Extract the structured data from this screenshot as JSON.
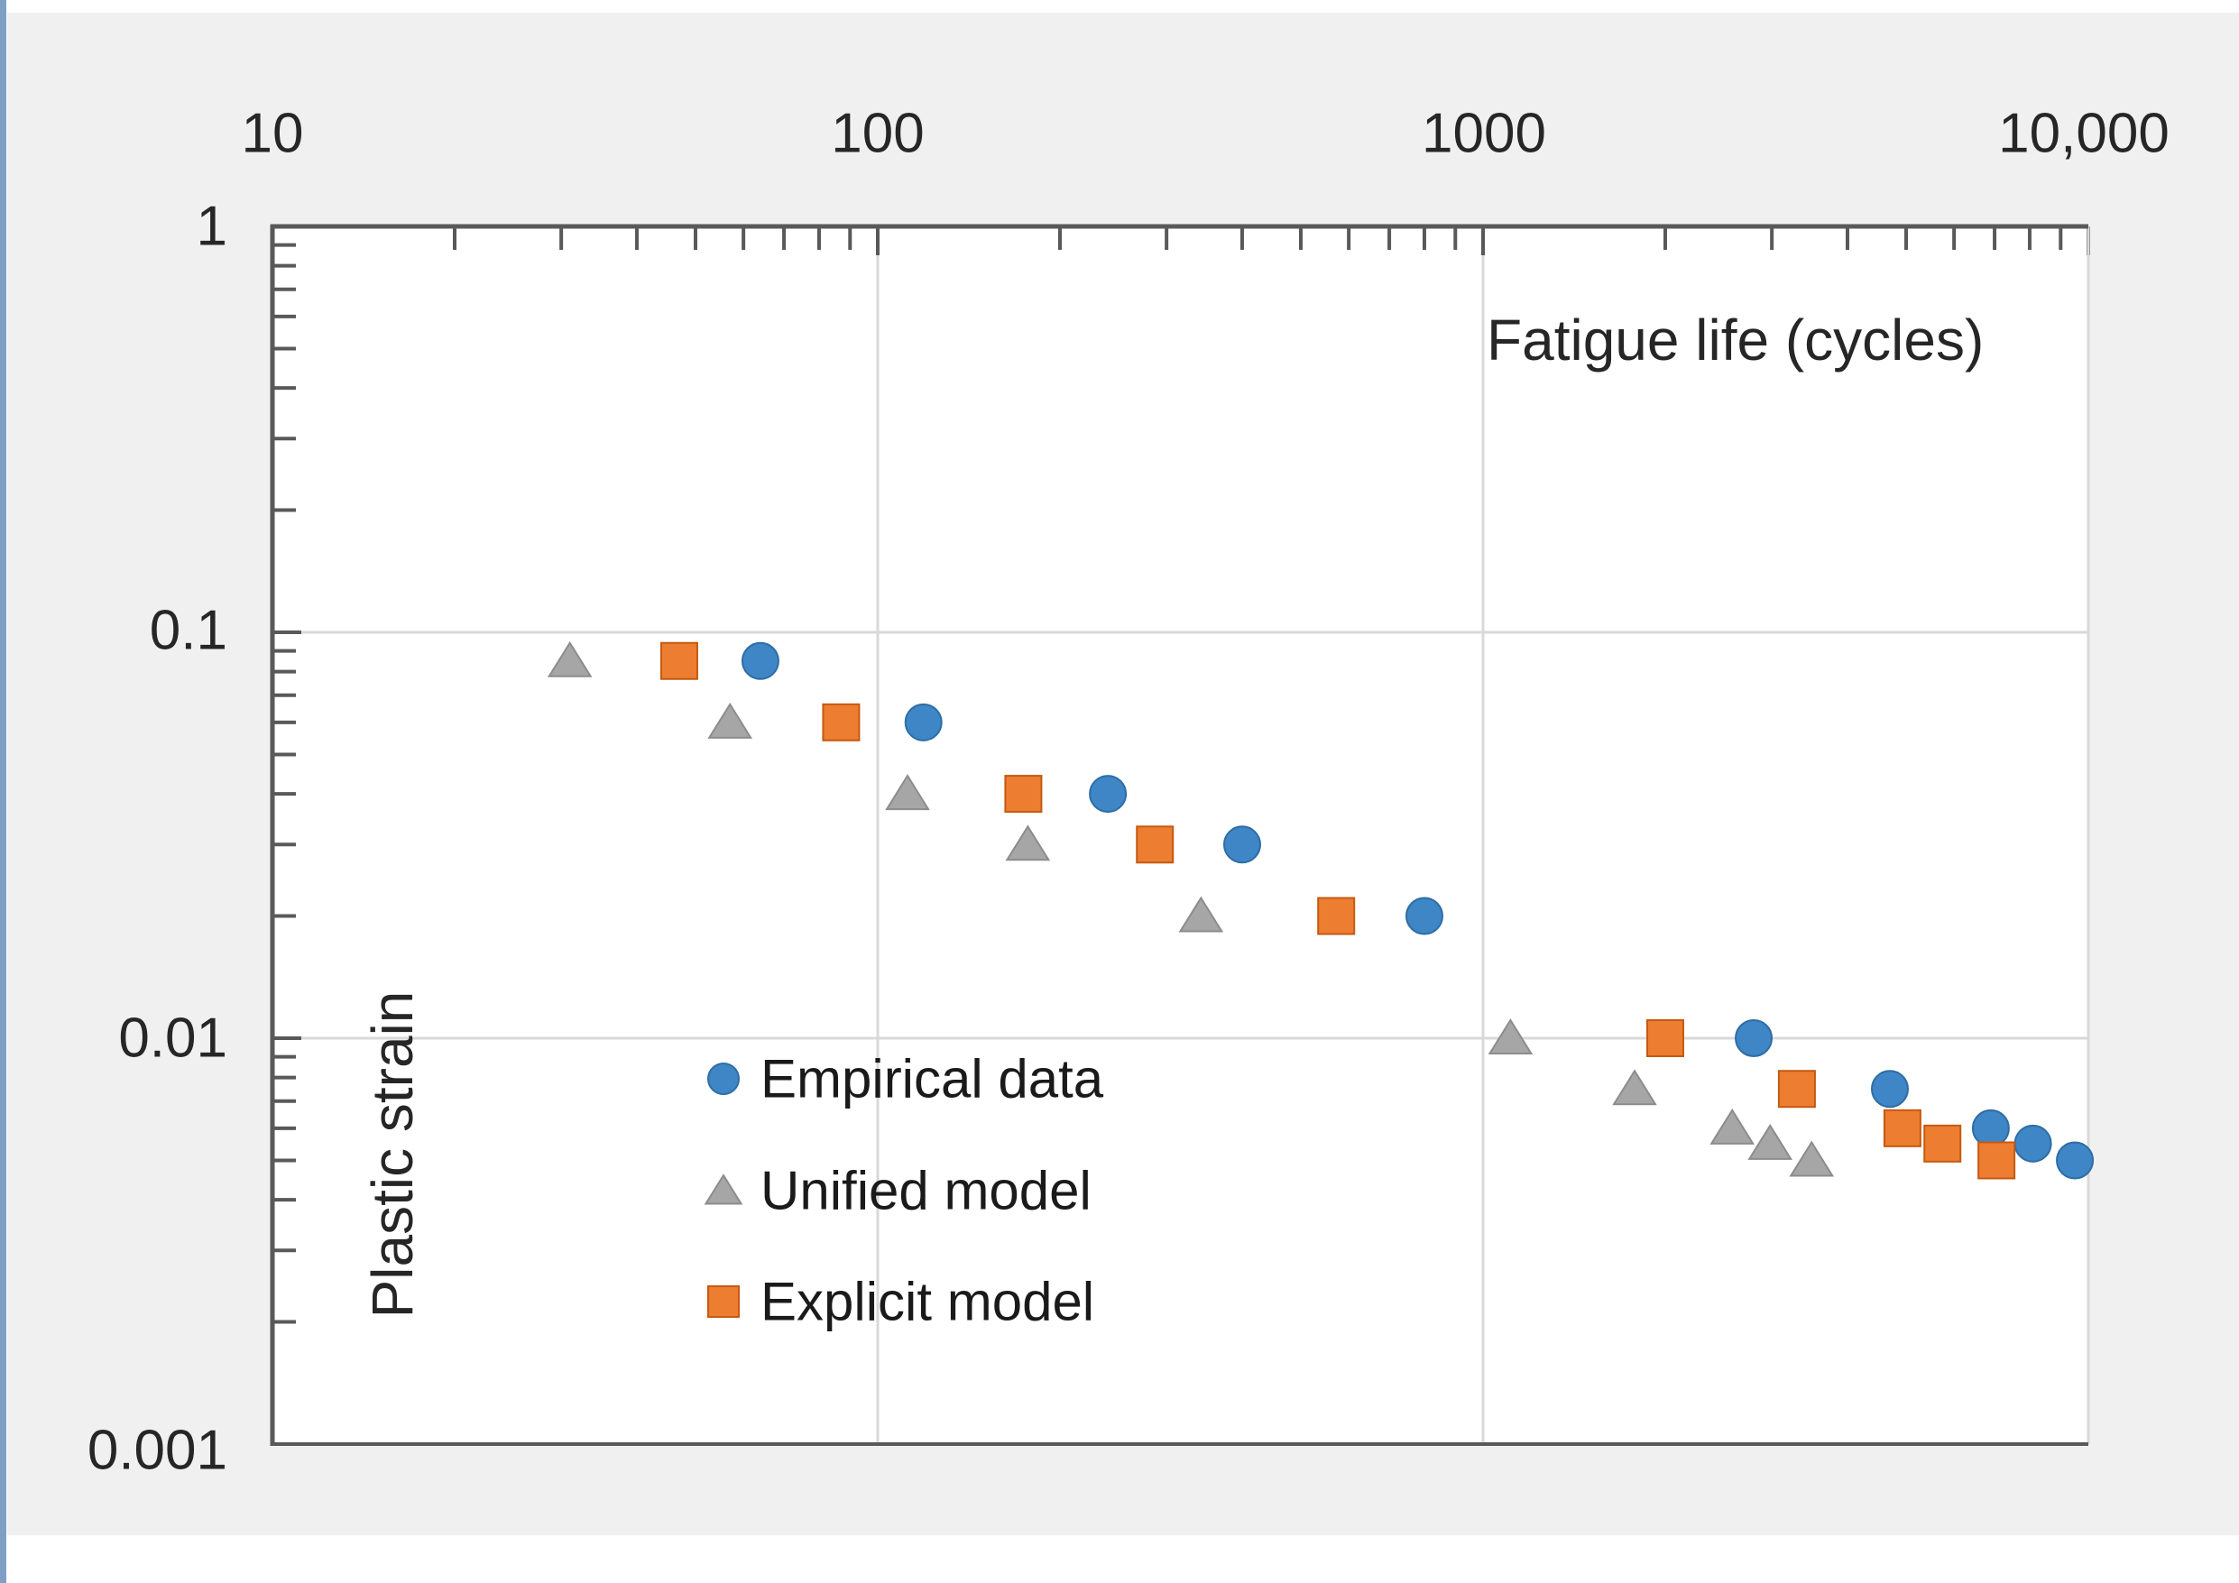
{
  "page": {
    "background": "#FFFFFF",
    "panel_background": "#F0F0F0",
    "edge_strip_color": "#7F9FC6"
  },
  "chart_data": {
    "type": "scatter",
    "title": "Fatigue life (cycles)",
    "xlabel": "Fatigue life (cycles)",
    "ylabel": "Plastic strain",
    "x_scale": "log",
    "y_scale": "log",
    "xlim": [
      10,
      10000
    ],
    "ylim": [
      0.001,
      1
    ],
    "grid": "on",
    "x_axis_position": "top",
    "x_gridline_values": [
      100,
      1000,
      10000
    ],
    "y_gridline_values": [
      0.1,
      0.01
    ],
    "x_ticks": [
      {
        "value": 10,
        "label": "10"
      },
      {
        "value": 100,
        "label": "100"
      },
      {
        "value": 1000,
        "label": "1000"
      },
      {
        "value": 10000,
        "label": "10,000"
      }
    ],
    "y_ticks": [
      {
        "value": 1,
        "label": "1"
      },
      {
        "value": 0.1,
        "label": "0.1"
      },
      {
        "value": 0.01,
        "label": "0.01"
      },
      {
        "value": 0.001,
        "label": "0.001"
      }
    ],
    "legend_position": "inside-center-left",
    "series": [
      {
        "name": "Empirical data",
        "marker": "circle",
        "color": "#3E86C6",
        "stroke": "#2E6DA4",
        "points": [
          [
            64,
            0.085
          ],
          [
            119,
            0.06
          ],
          [
            240,
            0.04
          ],
          [
            400,
            0.03
          ],
          [
            800,
            0.02
          ],
          [
            2800,
            0.01
          ],
          [
            4700,
            0.0075
          ],
          [
            6900,
            0.006
          ],
          [
            8100,
            0.0055
          ],
          [
            9500,
            0.005
          ]
        ]
      },
      {
        "name": "Unified model",
        "marker": "triangle",
        "color": "#A6A6A6",
        "stroke": "#8C8C8C",
        "points": [
          [
            31,
            0.085
          ],
          [
            57,
            0.06
          ],
          [
            112,
            0.04
          ],
          [
            177,
            0.03
          ],
          [
            342,
            0.02
          ],
          [
            1110,
            0.01
          ],
          [
            1780,
            0.0075
          ],
          [
            2580,
            0.006
          ],
          [
            2980,
            0.0055
          ],
          [
            3490,
            0.005
          ]
        ]
      },
      {
        "name": "Explicit model",
        "marker": "square",
        "color": "#ED7D31",
        "stroke": "#C55A11",
        "points": [
          [
            47,
            0.085
          ],
          [
            87,
            0.06
          ],
          [
            174,
            0.04
          ],
          [
            287,
            0.03
          ],
          [
            572,
            0.02
          ],
          [
            2000,
            0.01
          ],
          [
            3300,
            0.0075
          ],
          [
            4930,
            0.006
          ],
          [
            5740,
            0.0055
          ],
          [
            7050,
            0.005
          ]
        ]
      }
    ],
    "colors": {
      "gridline": "#D9D9D9",
      "axis_line": "#595959",
      "tick": "#595959",
      "tick_label": "#262626",
      "axis_title": "#262626",
      "legend_text": "#1A1A1A",
      "plot_background": "#FFFFFF"
    }
  }
}
